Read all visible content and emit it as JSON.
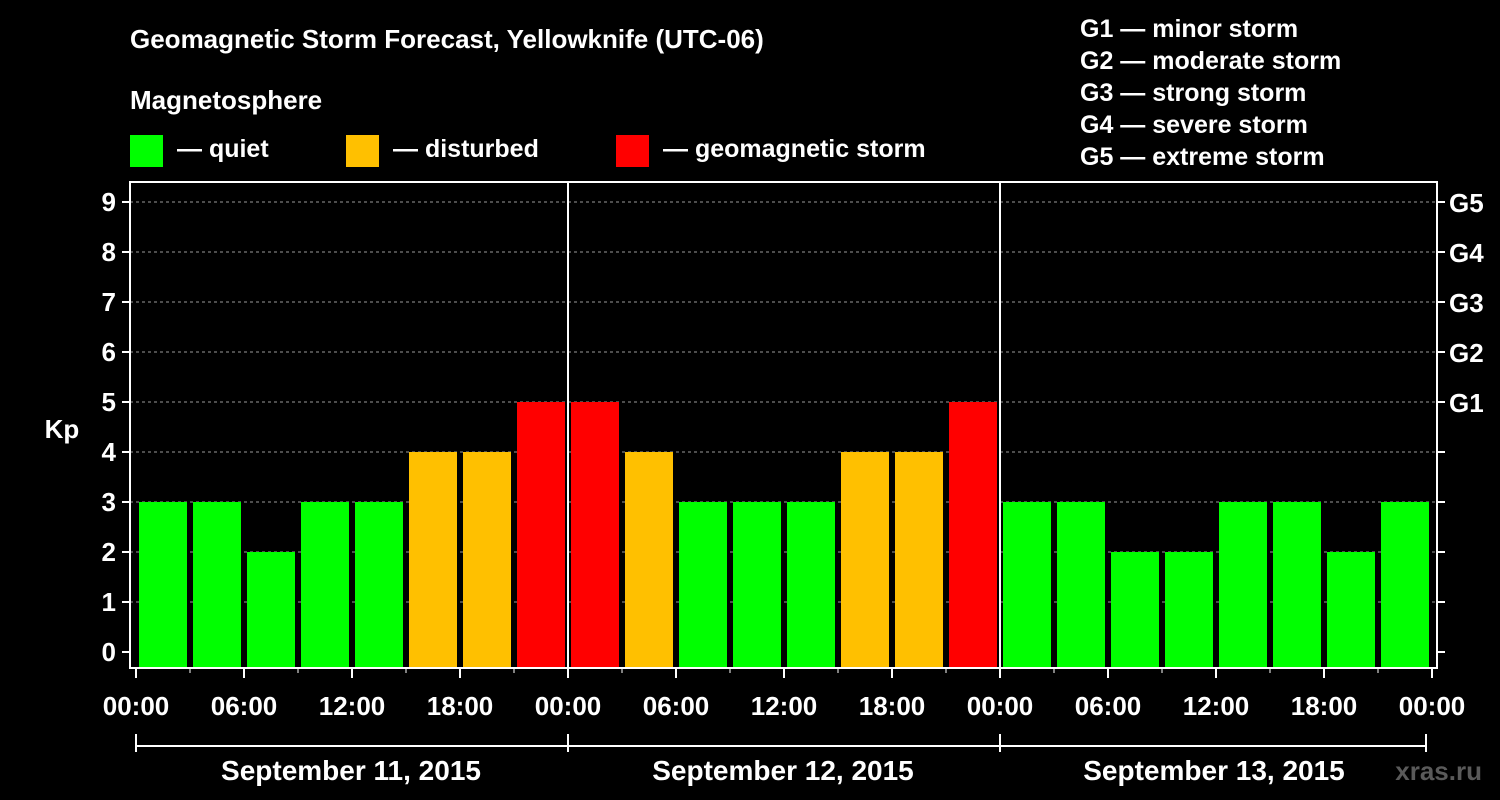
{
  "chart_data": {
    "type": "bar",
    "title": "Geomagnetic Storm Forecast, Yellowknife (UTC-06)",
    "ylabel": "Kp",
    "ylim": [
      0,
      9
    ],
    "y_ticks": [
      "0",
      "1",
      "2",
      "3",
      "4",
      "5",
      "6",
      "7",
      "8",
      "9"
    ],
    "right_axis": [
      {
        "kp": 5,
        "label": "G1"
      },
      {
        "kp": 6,
        "label": "G2"
      },
      {
        "kp": 7,
        "label": "G3"
      },
      {
        "kp": 8,
        "label": "G4"
      },
      {
        "kp": 9,
        "label": "G5"
      }
    ],
    "x_ticks": [
      "00:00",
      "06:00",
      "12:00",
      "18:00",
      "00:00",
      "06:00",
      "12:00",
      "18:00",
      "00:00",
      "06:00",
      "12:00",
      "18:00",
      "00:00"
    ],
    "days": [
      "September 11, 2015",
      "September 12, 2015",
      "September 13, 2015"
    ],
    "values": [
      3,
      3,
      2,
      3,
      3,
      4,
      4,
      5,
      5,
      4,
      3,
      3,
      3,
      4,
      4,
      5,
      3,
      3,
      2,
      2,
      3,
      3,
      2,
      3
    ],
    "status": [
      "quiet",
      "quiet",
      "quiet",
      "quiet",
      "quiet",
      "disturbed",
      "disturbed",
      "storm",
      "storm",
      "disturbed",
      "quiet",
      "quiet",
      "quiet",
      "disturbed",
      "disturbed",
      "storm",
      "quiet",
      "quiet",
      "quiet",
      "quiet",
      "quiet",
      "quiet",
      "quiet",
      "quiet"
    ],
    "grid": "dashed horizontal at each Kp level",
    "legend": {
      "heading": "Magnetosphere",
      "items": [
        {
          "key": "quiet",
          "label": "— quiet",
          "color": "#00ff00"
        },
        {
          "key": "disturbed",
          "label": "— disturbed",
          "color": "#ffc000"
        },
        {
          "key": "storm",
          "label": "— geomagnetic storm",
          "color": "#ff0000"
        }
      ]
    },
    "scale_legend": [
      "G1 — minor storm",
      "G2 — moderate storm",
      "G3 — strong storm",
      "G4 — severe storm",
      "G5 — extreme storm"
    ]
  },
  "credit": "xras.ru"
}
